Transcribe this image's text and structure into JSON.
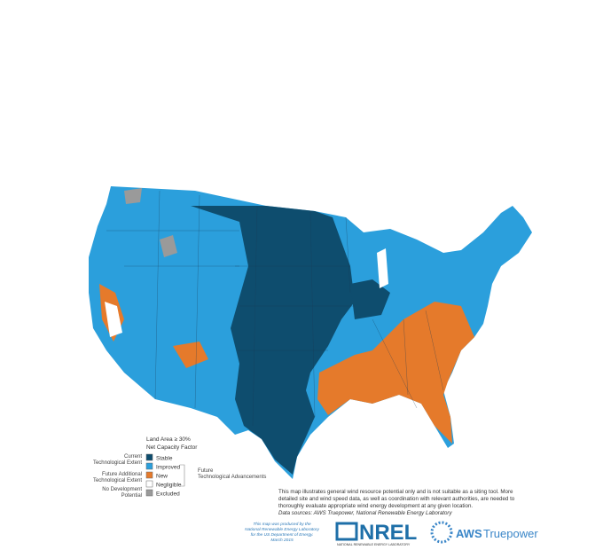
{
  "legend": {
    "title": [
      "Land Area ≥ 30%",
      "Net Capacity Factor"
    ],
    "items": [
      {
        "label": "Stable",
        "color": "#0e4d6e"
      },
      {
        "label": "Improved",
        "color": "#2b9fdc"
      },
      {
        "label": "New",
        "color": "#e57a2b"
      },
      {
        "label": "Negligible",
        "color": "#ffffff"
      },
      {
        "label": "Excluded",
        "color": "#9a9a9a"
      }
    ],
    "groups": [
      [
        "Current",
        "Technological Extent"
      ],
      [
        "Future Additional",
        "Technological Extent"
      ],
      [
        "No Development",
        "Potential"
      ]
    ],
    "future": [
      "Future",
      "Technological Advancements"
    ]
  },
  "notes": [
    "This map illustrates general wind resource potential only and is not suitable as a siting tool.  More",
    "detailed site and wind speed data, as well as coordination with relevant authorities, are needed to",
    "thoroughly evaluate appropriate wind energy development at any given location."
  ],
  "sources": "Data sources: AWS Truepower, National Renewable Energy Laboratory",
  "credit": [
    "This map was produced by the",
    "National Renewable Energy Laboratory",
    "for the US Department of Energy.",
    "March 2015"
  ],
  "logos": {
    "nrel": "NREL",
    "nrel_sub": "NATIONAL RENEWABLE ENERGY LABORATORY",
    "aws": "AWS",
    "aws2": "Truepower"
  }
}
